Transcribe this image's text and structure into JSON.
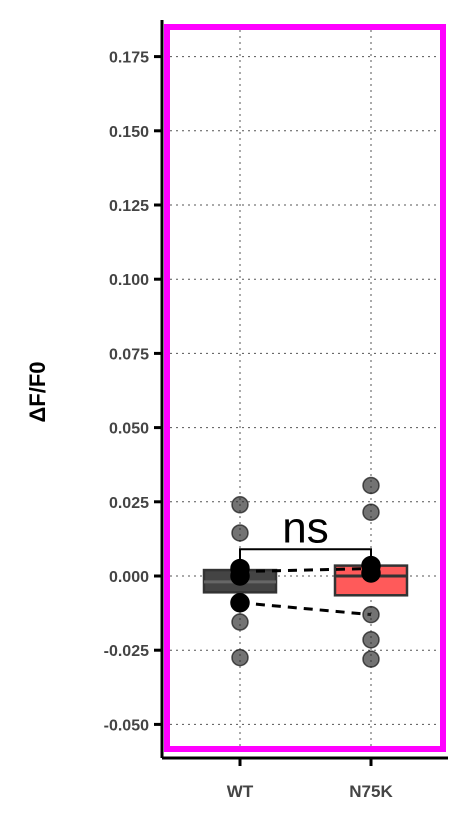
{
  "chart_data": {
    "type": "box",
    "ylabel": "ΔF/F0",
    "xlabel": "",
    "ylim": [
      -0.06,
      0.185
    ],
    "yticks": [
      0.175,
      0.15,
      0.125,
      0.1,
      0.075,
      0.05,
      0.025,
      0.0,
      -0.025,
      -0.05
    ],
    "ytick_labels": [
      "0.175",
      "0.150",
      "0.125",
      "0.100",
      "0.075",
      "0.050",
      "0.025",
      "0.000",
      "-0.025",
      "-0.050"
    ],
    "grid": true,
    "categories": [
      "WT",
      "N75K"
    ],
    "boxes": [
      {
        "category": "WT",
        "q1": -0.0055,
        "median": -0.002,
        "q3": 0.002,
        "whisker_low": -0.0055,
        "whisker_high": 0.002,
        "color": "#444444",
        "median_color": "#666666"
      },
      {
        "category": "N75K",
        "q1": -0.0065,
        "median": 0.0,
        "q3": 0.0035,
        "whisker_low": -0.0065,
        "whisker_high": 0.0035,
        "color": "#ff5a5a",
        "median_color": "#333333"
      }
    ],
    "points": [
      {
        "category": "WT",
        "values": [
          0.024,
          0.0145,
          0.0025,
          0.0,
          -0.009,
          -0.0155,
          -0.0275
        ]
      },
      {
        "category": "N75K",
        "values": [
          0.0305,
          0.0215,
          0.0035,
          0.001,
          -0.013,
          -0.0215,
          -0.028
        ]
      }
    ],
    "paired_lines": [
      {
        "from": 0.0015,
        "to": 0.0025
      },
      {
        "from": -0.009,
        "to": -0.013
      }
    ],
    "significance": {
      "label": "ns",
      "from": "WT",
      "to": "N75K",
      "y": 0.009
    },
    "colors": {
      "frame": "#ff00ff",
      "grid": "#555555",
      "wt": "#444444",
      "n75k": "#ff5a5a"
    }
  }
}
